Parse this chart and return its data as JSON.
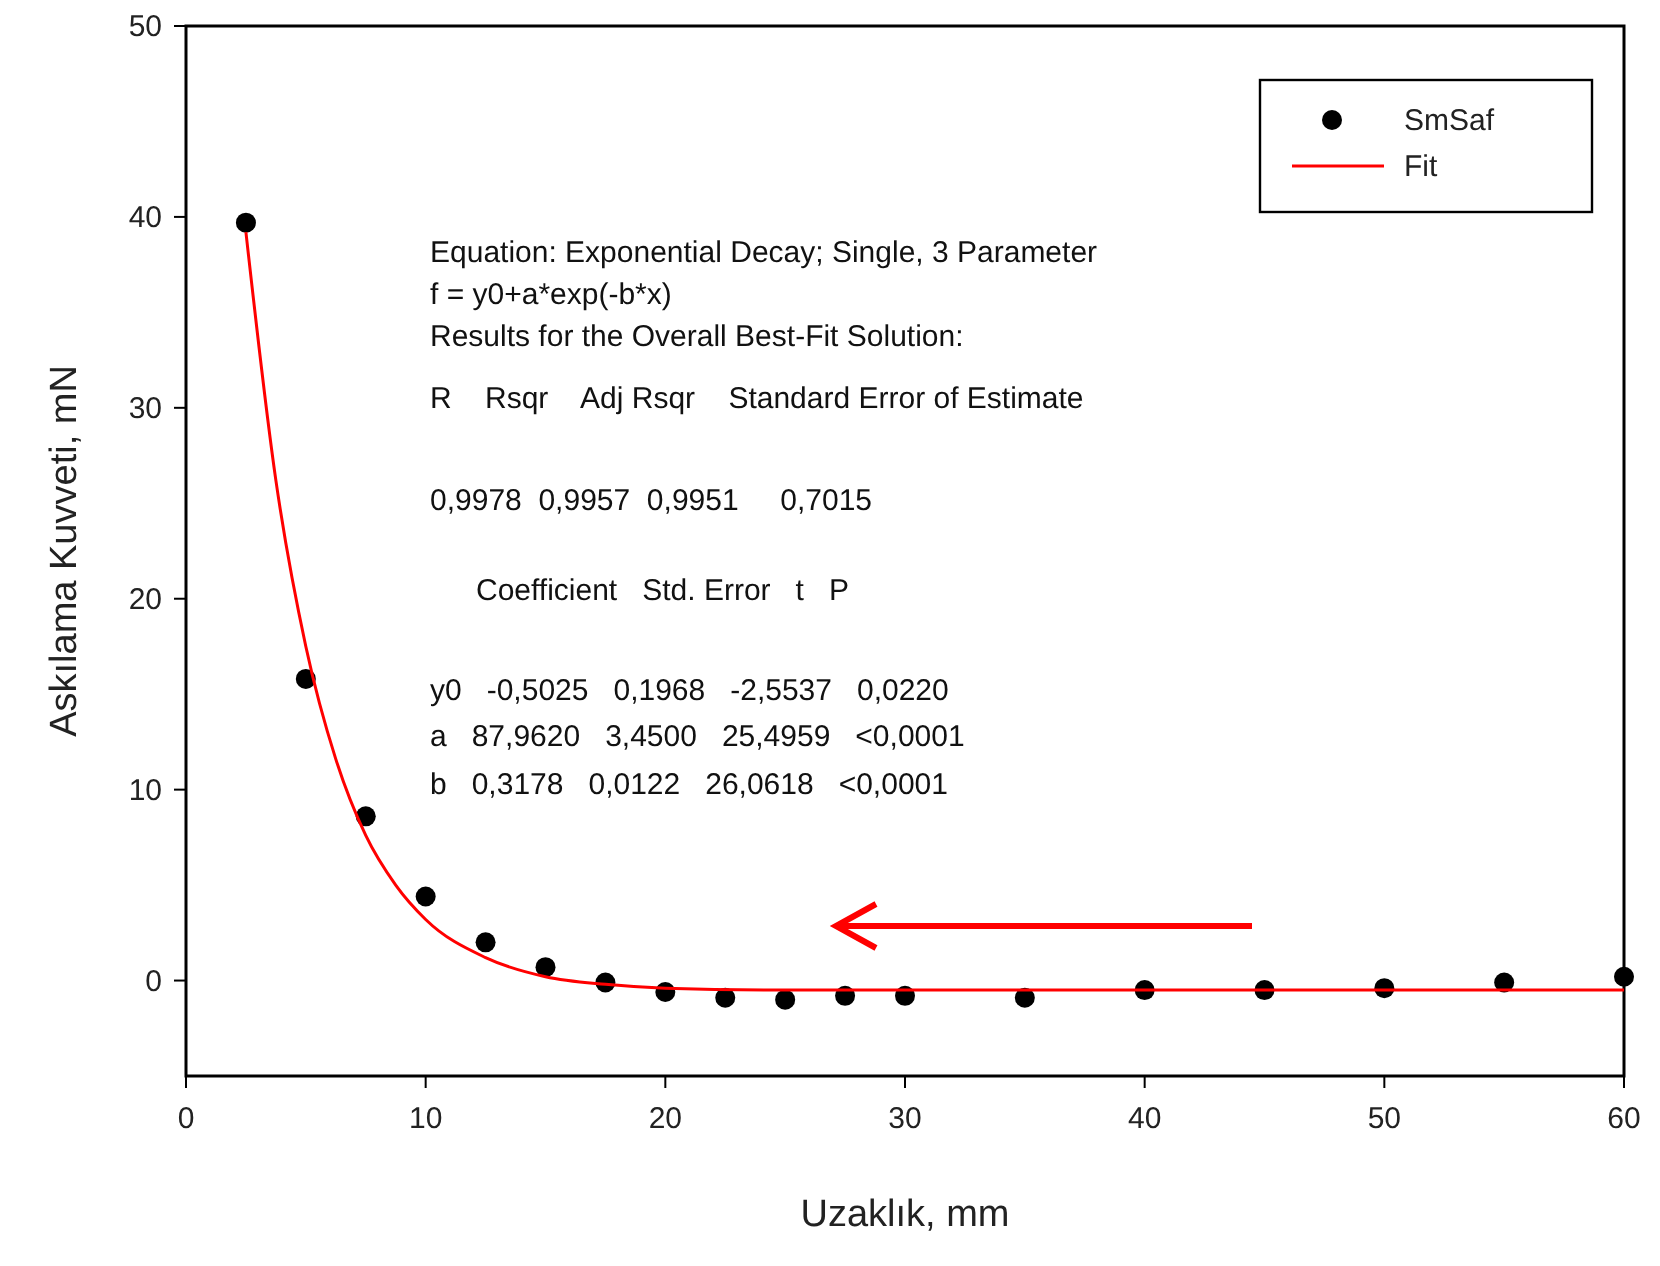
{
  "chart_data": {
    "type": "scatter",
    "xlabel": "Uzaklık, mm",
    "ylabel": "Askılama Kuvveti, mN",
    "xlim": [
      0,
      60
    ],
    "xticks": [
      0,
      10,
      20,
      30,
      40,
      50,
      60
    ],
    "ylim": [
      -5,
      50
    ],
    "yticks": [
      0,
      10,
      20,
      30,
      40,
      50
    ],
    "grid": false,
    "legend": "top right",
    "series": [
      {
        "name": "SmSaf",
        "marker": "circle",
        "color": "#000000",
        "x": [
          2.5,
          5,
          7.5,
          10,
          12.5,
          15,
          17.5,
          20,
          22.5,
          25,
          27.5,
          30,
          35,
          40,
          45,
          50,
          55,
          60
        ],
        "values": [
          39.7,
          15.8,
          8.6,
          4.4,
          2.0,
          0.7,
          -0.1,
          -0.6,
          -0.9,
          -1.0,
          -0.8,
          -0.8,
          -0.9,
          -0.5,
          -0.5,
          -0.4,
          -0.1,
          0.2
        ]
      },
      {
        "name": "Fit",
        "type": "line",
        "marker": "none",
        "line_style": "solid",
        "color": "#ff0000",
        "x": [
          2.5,
          3.75,
          5,
          6.25,
          7.5,
          8.75,
          10,
          12.5,
          15,
          17.5,
          20,
          25,
          30,
          40,
          50,
          60
        ],
        "values": [
          39.2,
          26.2,
          17.5,
          11.6,
          7.6,
          5.0,
          3.2,
          1.2,
          0.2,
          -0.2,
          -0.4,
          -0.5,
          -0.5,
          -0.5,
          -0.5,
          -0.5
        ]
      }
    ],
    "annotations": [
      "Equation: Exponential Decay; Single, 3 Parameter",
      "f = y0+a*exp(-b*x)",
      "Results for the Overall Best-Fit Solution:",
      "R    Rsqr    Adj Rsqr    Standard Error of Estimate",
      "0,9978  0,9957  0,9951     0,7015",
      "Coefficient   Std. Error   t   P",
      "y0   -0,5025   0,1968   -2,5537   0,0220",
      "a   87,9620   3,4500   25,4959   <0,0001",
      "b   0,3178   0,0122   26,0618   <0,0001"
    ]
  }
}
